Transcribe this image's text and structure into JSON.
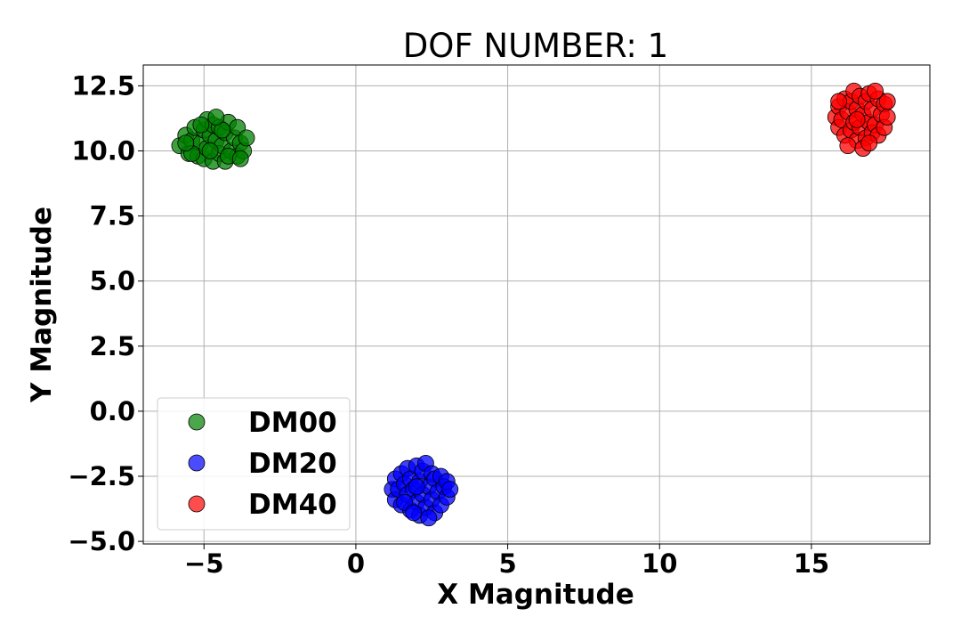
{
  "chart_data": {
    "type": "scatter",
    "title": "DOF NUMBER: 1",
    "xlabel": "X Magnitude",
    "ylabel": "Y Magnitude",
    "xlim": [
      -7,
      18.9
    ],
    "ylim": [
      -5.1,
      13.3
    ],
    "xticks": [
      {
        "value": -5,
        "label": "−5"
      },
      {
        "value": 0,
        "label": "0"
      },
      {
        "value": 5,
        "label": "5"
      },
      {
        "value": 10,
        "label": "10"
      },
      {
        "value": 15,
        "label": "15"
      }
    ],
    "yticks": [
      {
        "value": 12.5,
        "label": "12.5"
      },
      {
        "value": 10.0,
        "label": "10.0"
      },
      {
        "value": 7.5,
        "label": "7.5"
      },
      {
        "value": 5.0,
        "label": "5.0"
      },
      {
        "value": 2.5,
        "label": "2.5"
      },
      {
        "value": 0.0,
        "label": "0.0"
      },
      {
        "value": -2.5,
        "label": "−2.5"
      },
      {
        "value": -5.0,
        "label": "−5.0"
      }
    ],
    "grid": true,
    "legend_position": "lower-left",
    "series": [
      {
        "name": "DM00",
        "color": "#008000",
        "points": [
          [
            -5.8,
            10.2
          ],
          [
            -5.6,
            10.6
          ],
          [
            -5.5,
            9.9
          ],
          [
            -5.4,
            10.4
          ],
          [
            -5.3,
            10.9
          ],
          [
            -5.2,
            9.8
          ],
          [
            -5.1,
            10.3
          ],
          [
            -5.0,
            10.8
          ],
          [
            -5.0,
            9.7
          ],
          [
            -4.9,
            11.2
          ],
          [
            -4.9,
            10.1
          ],
          [
            -4.8,
            10.6
          ],
          [
            -4.7,
            9.6
          ],
          [
            -4.7,
            11.0
          ],
          [
            -4.6,
            10.4
          ],
          [
            -4.5,
            9.9
          ],
          [
            -4.5,
            10.9
          ],
          [
            -4.4,
            10.2
          ],
          [
            -4.3,
            9.6
          ],
          [
            -4.3,
            10.7
          ],
          [
            -4.2,
            11.1
          ],
          [
            -4.1,
            10.0
          ],
          [
            -4.0,
            10.5
          ],
          [
            -3.9,
            9.8
          ],
          [
            -3.9,
            10.9
          ],
          [
            -3.8,
            10.3
          ],
          [
            -3.7,
            10.0
          ],
          [
            -3.6,
            10.5
          ],
          [
            -5.4,
            9.9
          ],
          [
            -4.8,
            10.0
          ],
          [
            -4.4,
            10.8
          ],
          [
            -5.1,
            11.0
          ],
          [
            -4.2,
            9.8
          ],
          [
            -3.8,
            9.7
          ],
          [
            -5.6,
            10.3
          ],
          [
            -4.6,
            11.3
          ]
        ]
      },
      {
        "name": "DM20",
        "color": "#0000ff",
        "points": [
          [
            1.2,
            -3.0
          ],
          [
            1.3,
            -2.6
          ],
          [
            1.3,
            -3.4
          ],
          [
            1.4,
            -3.0
          ],
          [
            1.5,
            -2.4
          ],
          [
            1.5,
            -3.6
          ],
          [
            1.6,
            -2.8
          ],
          [
            1.7,
            -3.2
          ],
          [
            1.7,
            -2.2
          ],
          [
            1.8,
            -3.8
          ],
          [
            1.8,
            -2.6
          ],
          [
            1.9,
            -3.0
          ],
          [
            2.0,
            -2.1
          ],
          [
            2.0,
            -3.5
          ],
          [
            2.1,
            -2.7
          ],
          [
            2.1,
            -4.0
          ],
          [
            2.2,
            -2.3
          ],
          [
            2.2,
            -3.2
          ],
          [
            2.3,
            -2.0
          ],
          [
            2.3,
            -3.7
          ],
          [
            2.4,
            -2.9
          ],
          [
            2.5,
            -2.4
          ],
          [
            2.5,
            -3.4
          ],
          [
            2.6,
            -3.9
          ],
          [
            2.6,
            -2.6
          ],
          [
            2.7,
            -3.1
          ],
          [
            2.8,
            -2.5
          ],
          [
            2.8,
            -3.6
          ],
          [
            2.9,
            -2.9
          ],
          [
            3.0,
            -3.3
          ],
          [
            3.0,
            -2.7
          ],
          [
            3.1,
            -3.0
          ],
          [
            1.6,
            -3.5
          ],
          [
            2.4,
            -4.1
          ],
          [
            2.0,
            -2.9
          ],
          [
            1.9,
            -3.9
          ]
        ]
      },
      {
        "name": "DM40",
        "color": "#ff0000",
        "points": [
          [
            15.8,
            11.3
          ],
          [
            15.9,
            10.9
          ],
          [
            15.9,
            11.7
          ],
          [
            16.0,
            11.2
          ],
          [
            16.1,
            10.6
          ],
          [
            16.1,
            12.0
          ],
          [
            16.2,
            11.5
          ],
          [
            16.3,
            10.8
          ],
          [
            16.3,
            11.9
          ],
          [
            16.4,
            11.1
          ],
          [
            16.4,
            12.3
          ],
          [
            16.5,
            10.4
          ],
          [
            16.5,
            11.6
          ],
          [
            16.6,
            12.1
          ],
          [
            16.6,
            10.9
          ],
          [
            16.7,
            11.4
          ],
          [
            16.8,
            10.5
          ],
          [
            16.8,
            11.9
          ],
          [
            16.9,
            11.1
          ],
          [
            16.9,
            12.2
          ],
          [
            17.0,
            10.7
          ],
          [
            17.0,
            11.6
          ],
          [
            17.1,
            11.0
          ],
          [
            17.2,
            12.0
          ],
          [
            17.2,
            10.6
          ],
          [
            17.3,
            11.4
          ],
          [
            17.4,
            11.8
          ],
          [
            17.4,
            10.9
          ],
          [
            17.5,
            11.3
          ],
          [
            17.5,
            11.9
          ],
          [
            16.2,
            10.2
          ],
          [
            16.7,
            10.1
          ],
          [
            15.9,
            11.9
          ],
          [
            17.1,
            12.3
          ],
          [
            16.5,
            11.2
          ],
          [
            16.9,
            10.3
          ]
        ]
      }
    ]
  }
}
